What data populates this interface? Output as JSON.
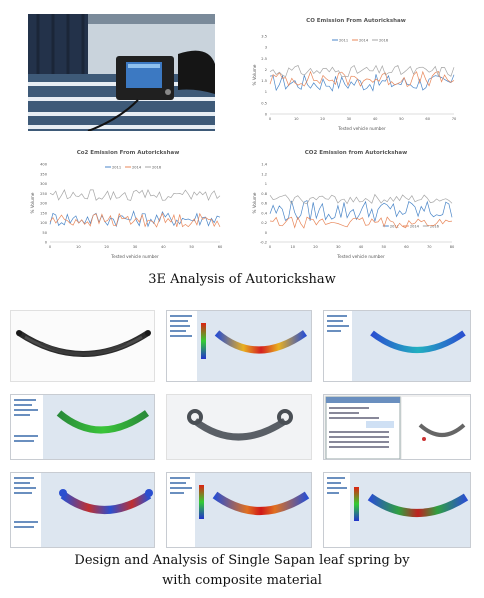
{
  "photo": {
    "subject": "gas-analyzer-photo"
  },
  "charts": [
    {
      "title": "CO Emission From Autorickshaw",
      "xlabel": "Tested vehicle number",
      "ylabel": "% Volume",
      "legend": [
        "2011",
        "2014",
        "2016"
      ],
      "xticks": [
        "0",
        "10",
        "20",
        "30",
        "40",
        "50",
        "60",
        "70"
      ],
      "yticks": [
        "0",
        "0.5",
        "1",
        "1.5",
        "2",
        "2.5",
        "3",
        "3.5"
      ]
    },
    {
      "title": "Co2 Emission From Autorickshaw",
      "xlabel": "Tested vehicle number",
      "ylabel": "% Volume",
      "legend": [
        "2011",
        "2014",
        "2016"
      ],
      "xticks": [
        "0",
        "10",
        "20",
        "30",
        "40",
        "50",
        "60"
      ],
      "yticks": [
        "0",
        "50",
        "100",
        "150",
        "200",
        "250",
        "300",
        "350",
        "400"
      ]
    },
    {
      "title": "CO2 Emission from Autorickshaw",
      "xlabel": "Tested vehicle number",
      "ylabel": "% Volume",
      "legend": [
        "2011",
        "2014",
        "2016"
      ],
      "xticks": [
        "0",
        "10",
        "20",
        "30",
        "40",
        "50",
        "60",
        "70",
        "80"
      ],
      "yticks": [
        "-0.2",
        "0",
        "0.2",
        "0.4",
        "0.6",
        "0.8",
        "1",
        "1.2",
        "1.4"
      ]
    }
  ],
  "captions": {
    "analysis": "3E Analysis of Autorickshaw",
    "design_line1": "Design and Analysis of Single Sapan leaf spring by",
    "design_line2": "with composite material"
  },
  "colors": {
    "series_2011": "#4a86c8",
    "series_2014": "#e8875a",
    "series_2016": "#a6a6a6"
  }
}
